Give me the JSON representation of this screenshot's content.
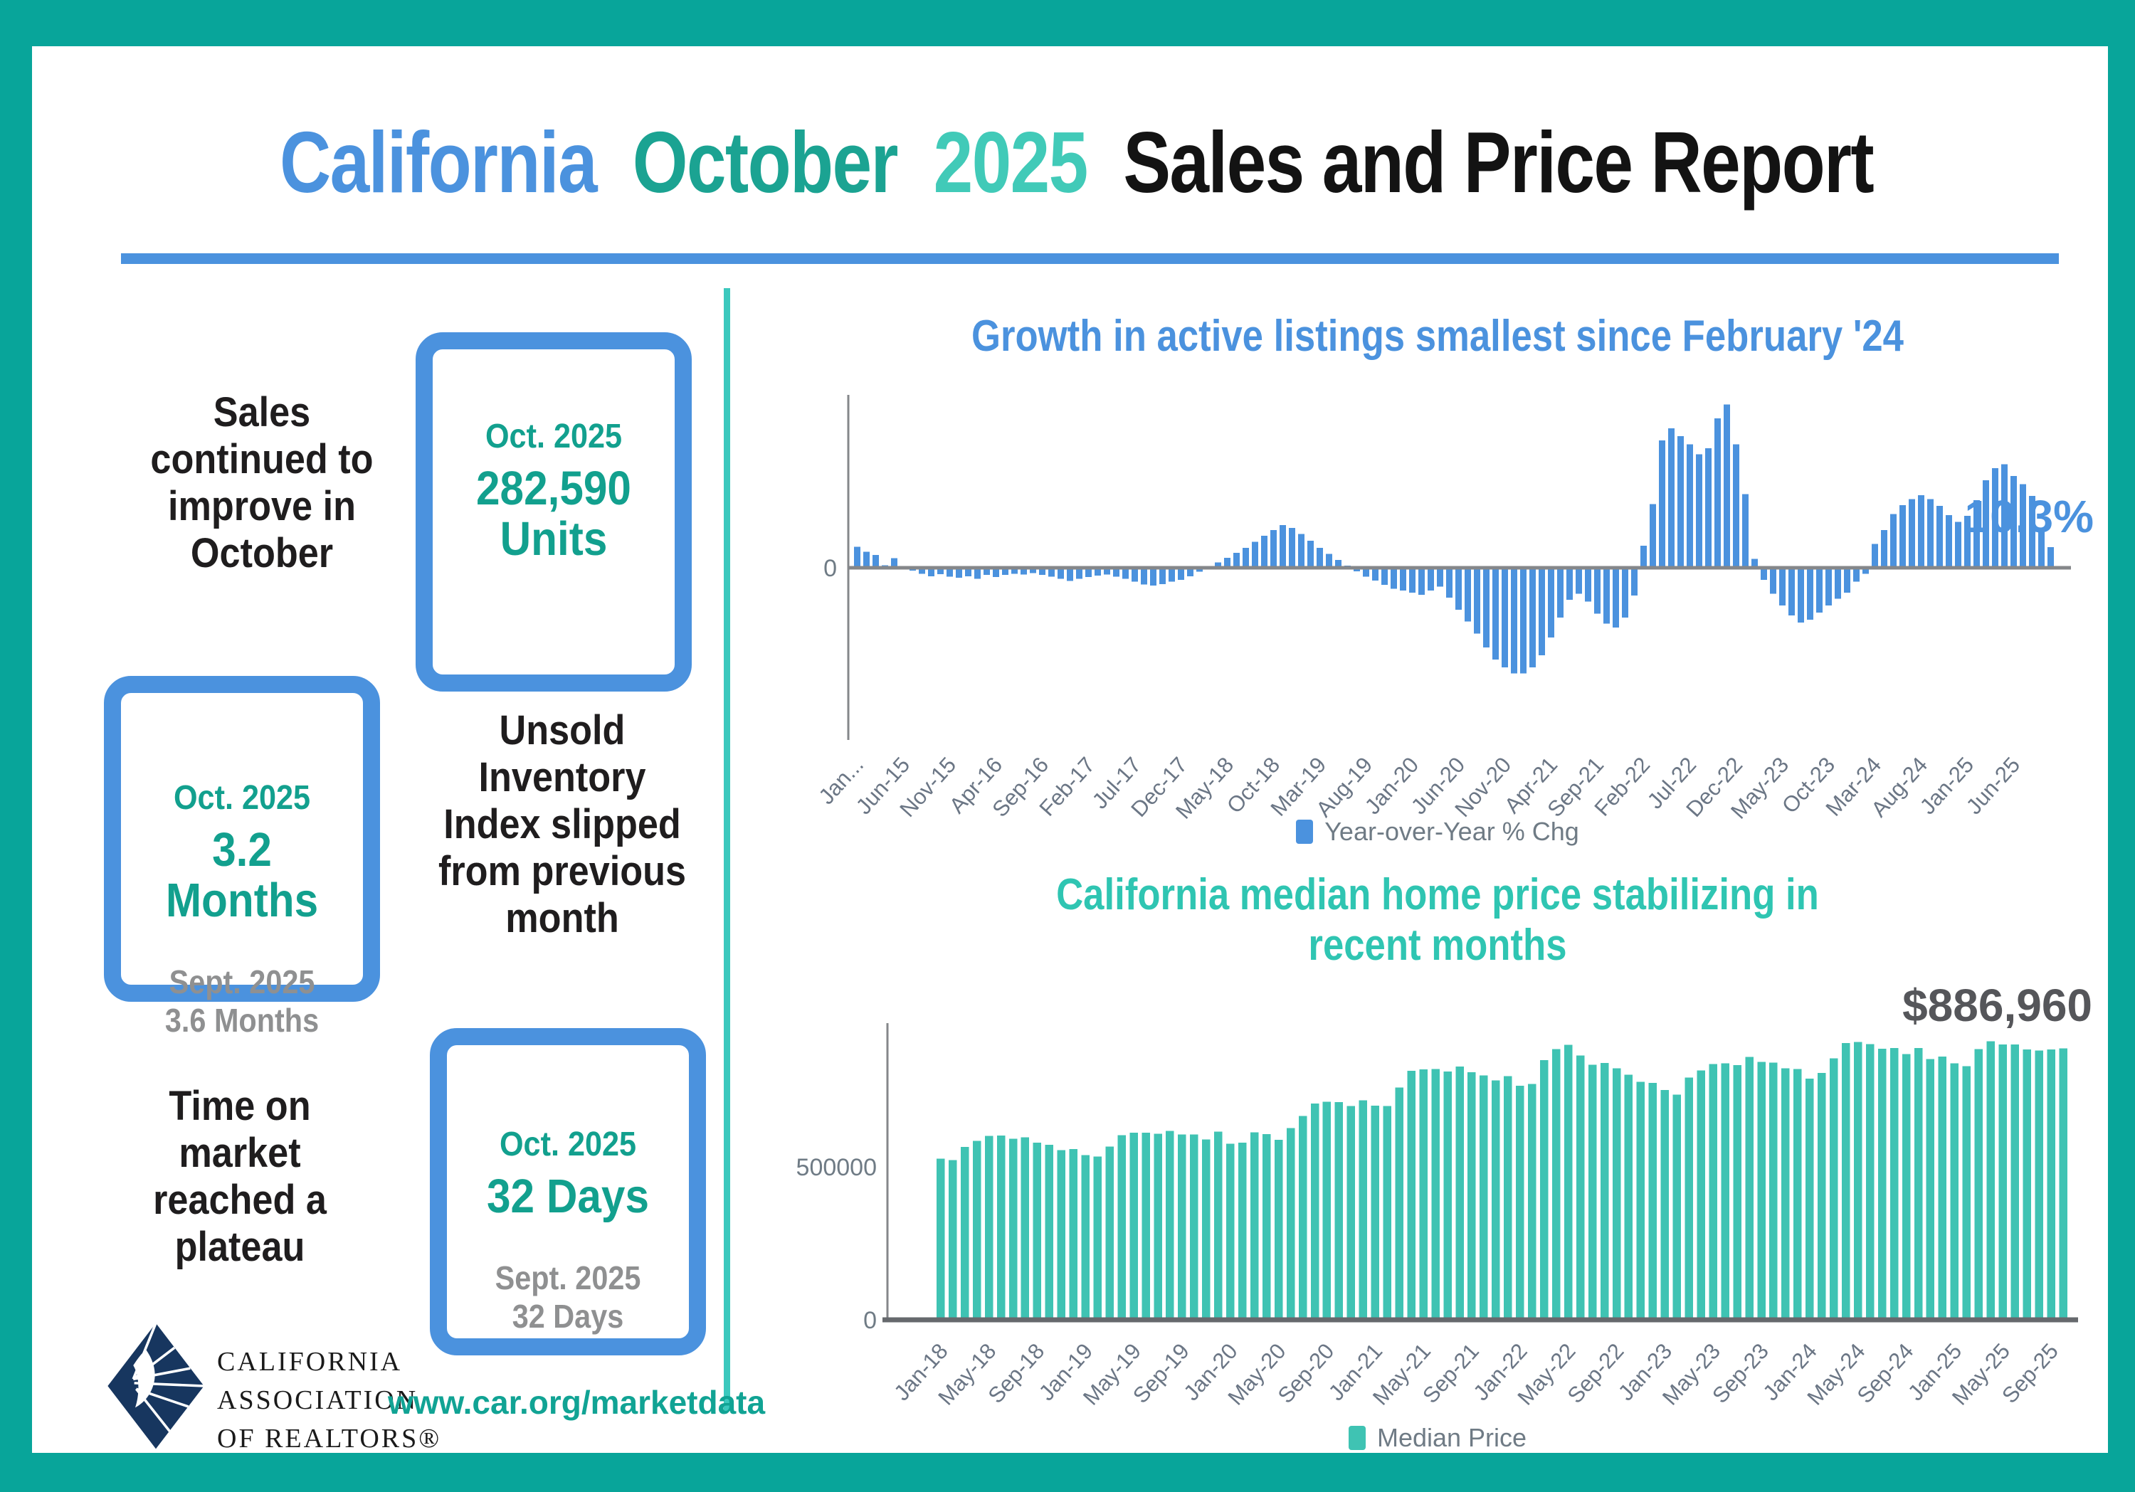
{
  "header": {
    "title_california": "California",
    "title_october": "October",
    "title_year": "2025",
    "title_rest": "Sales and Price Report"
  },
  "colors": {
    "frame_teal": "#08a59a",
    "divider_teal": "#3bc8bd",
    "accent_blue": "#4b92de",
    "stat_teal": "#12a08e",
    "chart2_teal": "#3fc3b3",
    "gray_text": "#8f9091",
    "axis_gray": "#85878a",
    "logo_navy": "#17365f"
  },
  "stats": {
    "sales": {
      "label": "Sales\ncontinued to\nimprove in\nOctober",
      "period": "Oct. 2025",
      "value": "282,590\nUnits"
    },
    "inventory": {
      "label": "Unsold\nInventory\nIndex slipped\nfrom previous\nmonth",
      "period": "Oct. 2025",
      "value": "3.2 Months",
      "prev": "Sept. 2025\n3.6 Months"
    },
    "time_on_market": {
      "label": "Time on\nmarket\nreached a\nplateau",
      "period": "Oct. 2025",
      "value": "32 Days",
      "prev": "Sept. 2025\n32 Days"
    }
  },
  "footer": {
    "logo_text": "CALIFORNIA\nASSOCIATION\nOF REALTORS®",
    "url": "www.car.org/marketdata"
  },
  "chart_data": [
    {
      "type": "bar",
      "title": "Growth in active listings smallest since February '24",
      "legend": "Year-over-Year % Chg",
      "bar_color": "#4b92de",
      "annotation": "10.3%",
      "annotation_color": "#4b92de",
      "ylim": [
        -60,
        90
      ],
      "grid": false,
      "legend_position": "bottom",
      "y_ticks": [
        "0"
      ],
      "tick_every": 5,
      "tick_labels": [
        "Jan...",
        "Jun-15",
        "Nov-15",
        "Apr-16",
        "Sep-16",
        "Feb-17",
        "Jul-17",
        "Dec-17",
        "May-18",
        "Oct-18",
        "Mar-19",
        "Aug-19",
        "Jan-20",
        "Jun-20",
        "Nov-20",
        "Apr-21",
        "Sep-21",
        "Feb-22",
        "Jul-22",
        "Dec-22",
        "May-23",
        "Oct-23",
        "Mar-24",
        "Aug-24",
        "Jan-25",
        "Jun-25"
      ],
      "x": [
        "Jan-15",
        "Feb-15",
        "Mar-15",
        "Apr-15",
        "May-15",
        "Jun-15",
        "Jul-15",
        "Aug-15",
        "Sep-15",
        "Oct-15",
        "Nov-15",
        "Dec-15",
        "Jan-16",
        "Feb-16",
        "Mar-16",
        "Apr-16",
        "May-16",
        "Jun-16",
        "Jul-16",
        "Aug-16",
        "Sep-16",
        "Oct-16",
        "Nov-16",
        "Dec-16",
        "Jan-17",
        "Feb-17",
        "Mar-17",
        "Apr-17",
        "May-17",
        "Jun-17",
        "Jul-17",
        "Aug-17",
        "Sep-17",
        "Oct-17",
        "Nov-17",
        "Dec-17",
        "Jan-18",
        "Feb-18",
        "Mar-18",
        "Apr-18",
        "May-18",
        "Jun-18",
        "Jul-18",
        "Aug-18",
        "Sep-18",
        "Oct-18",
        "Nov-18",
        "Dec-18",
        "Jan-19",
        "Feb-19",
        "Mar-19",
        "Apr-19",
        "May-19",
        "Jun-19",
        "Jul-19",
        "Aug-19",
        "Sep-19",
        "Oct-19",
        "Nov-19",
        "Dec-19",
        "Jan-20",
        "Feb-20",
        "Mar-20",
        "Apr-20",
        "May-20",
        "Jun-20",
        "Jul-20",
        "Aug-20",
        "Sep-20",
        "Oct-20",
        "Nov-20",
        "Dec-20",
        "Jan-21",
        "Feb-21",
        "Mar-21",
        "Apr-21",
        "May-21",
        "Jun-21",
        "Jul-21",
        "Aug-21",
        "Sep-21",
        "Oct-21",
        "Nov-21",
        "Dec-21",
        "Jan-22",
        "Feb-22",
        "Mar-22",
        "Apr-22",
        "May-22",
        "Jun-22",
        "Jul-22",
        "Aug-22",
        "Sep-22",
        "Oct-22",
        "Nov-22",
        "Dec-22",
        "Jan-23",
        "Feb-23",
        "Mar-23",
        "Apr-23",
        "May-23",
        "Jun-23",
        "Jul-23",
        "Aug-23",
        "Sep-23",
        "Oct-23",
        "Nov-23",
        "Dec-23",
        "Jan-24",
        "Feb-24",
        "Mar-24",
        "Apr-24",
        "May-24",
        "Jun-24",
        "Jul-24",
        "Aug-24",
        "Sep-24",
        "Oct-24",
        "Nov-24",
        "Dec-24",
        "Jan-25",
        "Feb-25",
        "Mar-25",
        "Apr-25",
        "May-25",
        "Jun-25",
        "Jul-25",
        "Aug-25",
        "Sep-25",
        "Oct-25"
      ],
      "values": [
        10.5,
        8,
        6.5,
        1.2,
        4.8,
        0.5,
        -1.5,
        -3,
        -4.2,
        -3.2,
        -4.5,
        -5,
        -4.2,
        -5.5,
        -3.6,
        -4.6,
        -3.6,
        -3,
        -3.4,
        -2.6,
        -3.5,
        -4.4,
        -5.6,
        -6.6,
        -5.6,
        -4.6,
        -4,
        -3.4,
        -4.4,
        -5.6,
        -7,
        -8.4,
        -9,
        -8.2,
        -7,
        -6,
        -4.2,
        -2,
        0.8,
        2.6,
        5,
        7.5,
        10,
        13,
        16,
        19,
        21.5,
        20,
        17,
        13.5,
        10,
        7,
        4,
        1,
        -1.8,
        -4.5,
        -6.5,
        -8.5,
        -10.5,
        -11.5,
        -12.5,
        -13.5,
        -11.5,
        -9.5,
        -15,
        -21,
        -27,
        -33,
        -40,
        -46,
        -50,
        -53,
        -53,
        -50,
        -44,
        -35,
        -25,
        -16,
        -13,
        -17,
        -23,
        -28,
        -30,
        -25,
        -14,
        11,
        32,
        64,
        70,
        66,
        62,
        57,
        60,
        75,
        82,
        62,
        37,
        4.5,
        -6,
        -13,
        -19,
        -24,
        -27.5,
        -26,
        -22.5,
        -19,
        -15.5,
        -12.5,
        -7,
        -3,
        12,
        19,
        27,
        31.5,
        34.5,
        36.5,
        34.5,
        31,
        26.5,
        23,
        26,
        34,
        44,
        50,
        52,
        46,
        42,
        36,
        18,
        10.3
      ]
    },
    {
      "type": "bar",
      "title": "California median home price stabilizing in\nrecent months",
      "legend": "Median Price",
      "bar_color": "#3fc3b3",
      "annotation": "$886,960",
      "annotation_color": "#55565a",
      "ylim": [
        0,
        1000000
      ],
      "grid": false,
      "legend_position": "bottom",
      "y_ticks": [
        "0",
        "500000"
      ],
      "tick_every": 4,
      "tick_labels": [
        "Jan-18",
        "May-18",
        "Sep-18",
        "Jan-19",
        "May-19",
        "Sep-19",
        "Jan-20",
        "May-20",
        "Sep-20",
        "Jan-21",
        "May-21",
        "Sep-21",
        "Jan-22",
        "May-22",
        "Sep-22",
        "Jan-23",
        "May-23",
        "Sep-23",
        "Jan-24",
        "May-24",
        "Sep-24",
        "Jan-25",
        "May-25",
        "Sep-25"
      ],
      "x": [
        "Jan-18",
        "Feb-18",
        "Mar-18",
        "Apr-18",
        "May-18",
        "Jun-18",
        "Jul-18",
        "Aug-18",
        "Sep-18",
        "Oct-18",
        "Nov-18",
        "Dec-18",
        "Jan-19",
        "Feb-19",
        "Mar-19",
        "Apr-19",
        "May-19",
        "Jun-19",
        "Jul-19",
        "Aug-19",
        "Sep-19",
        "Oct-19",
        "Nov-19",
        "Dec-19",
        "Jan-20",
        "Feb-20",
        "Mar-20",
        "Apr-20",
        "May-20",
        "Jun-20",
        "Jul-20",
        "Aug-20",
        "Sep-20",
        "Oct-20",
        "Nov-20",
        "Dec-20",
        "Jan-21",
        "Feb-21",
        "Mar-21",
        "Apr-21",
        "May-21",
        "Jun-21",
        "Jul-21",
        "Aug-21",
        "Sep-21",
        "Oct-21",
        "Nov-21",
        "Dec-21",
        "Jan-22",
        "Feb-22",
        "Mar-22",
        "Apr-22",
        "May-22",
        "Jun-22",
        "Jul-22",
        "Aug-22",
        "Sep-22",
        "Oct-22",
        "Nov-22",
        "Dec-22",
        "Jan-23",
        "Feb-23",
        "Mar-23",
        "Apr-23",
        "May-23",
        "Jun-23",
        "Jul-23",
        "Aug-23",
        "Sep-23",
        "Oct-23",
        "Nov-23",
        "Dec-23",
        "Jan-24",
        "Feb-24",
        "Mar-24",
        "Apr-24",
        "May-24",
        "Jun-24",
        "Jul-24",
        "Aug-24",
        "Sep-24",
        "Oct-24",
        "Nov-24",
        "Dec-24",
        "Jan-25",
        "Feb-25",
        "Mar-25",
        "Apr-25",
        "May-25",
        "Jun-25",
        "Jul-25",
        "Aug-25",
        "Sep-25",
        "Oct-25"
      ],
      "values": [
        527000,
        522500,
        564830,
        584460,
        600860,
        602760,
        591460,
        596410,
        578850,
        572000,
        554760,
        557600,
        538690,
        534140,
        565880,
        602920,
        611190,
        611420,
        607990,
        617410,
        605680,
        605280,
        589770,
        615090,
        575160,
        578690,
        612440,
        606410,
        588070,
        626170,
        666320,
        706900,
        712430,
        711300,
        699000,
        717930,
        699890,
        699000,
        758990,
        813980,
        818260,
        819630,
        811170,
        827940,
        808890,
        798440,
        782480,
        796570,
        765580,
        771270,
        849080,
        884890,
        898980,
        863790,
        833910,
        839460,
        821680,
        801190,
        777500,
        774580,
        751330,
        735480,
        791490,
        815340,
        836110,
        838260,
        832340,
        859800,
        843340,
        840360,
        822200,
        819740,
        788940,
        806490,
        854490,
        904210,
        908040,
        900720,
        886560,
        888740,
        868150,
        888740,
        852880,
        861020,
        838850,
        829060,
        884350,
        910160,
        900170,
        899560,
        884050,
        880250,
        884050,
        886960
      ]
    }
  ]
}
